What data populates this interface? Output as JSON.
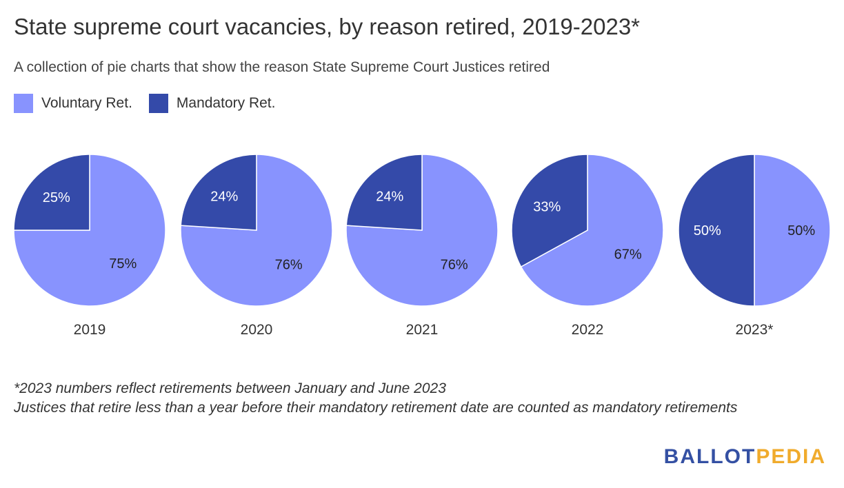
{
  "header": {
    "title": "State supreme court vacancies, by reason retired, 2019-2023*",
    "subtitle": "A collection of pie charts that show the reason State Supreme Court Justices retired"
  },
  "legend": [
    {
      "label": "Voluntary Ret.",
      "color": "#8893fe"
    },
    {
      "label": "Mandatory Ret.",
      "color": "#344aa9"
    }
  ],
  "chart_data": {
    "type": "pie",
    "series_names": [
      "Voluntary Ret.",
      "Mandatory Ret."
    ],
    "colors": [
      "#8893fe",
      "#344aa9"
    ],
    "charts": [
      {
        "label": "2019",
        "values": [
          75,
          25
        ],
        "value_labels": [
          "75%",
          "25%"
        ]
      },
      {
        "label": "2020",
        "values": [
          76,
          24
        ],
        "value_labels": [
          "76%",
          "24%"
        ]
      },
      {
        "label": "2021",
        "values": [
          76,
          24
        ],
        "value_labels": [
          "76%",
          "24%"
        ]
      },
      {
        "label": "2022",
        "values": [
          67,
          33
        ],
        "value_labels": [
          "67%",
          "33%"
        ]
      },
      {
        "label": "2023*",
        "values": [
          50,
          50
        ],
        "value_labels": [
          "50%",
          "50%"
        ]
      }
    ]
  },
  "notes": {
    "line1": "*2023 numbers reflect retirements between January and June 2023",
    "line2": "Justices that retire less than a year before their mandatory retirement date are counted as mandatory retirements"
  },
  "logo": {
    "part1": "BALLOT",
    "part2": "PEDIA"
  }
}
